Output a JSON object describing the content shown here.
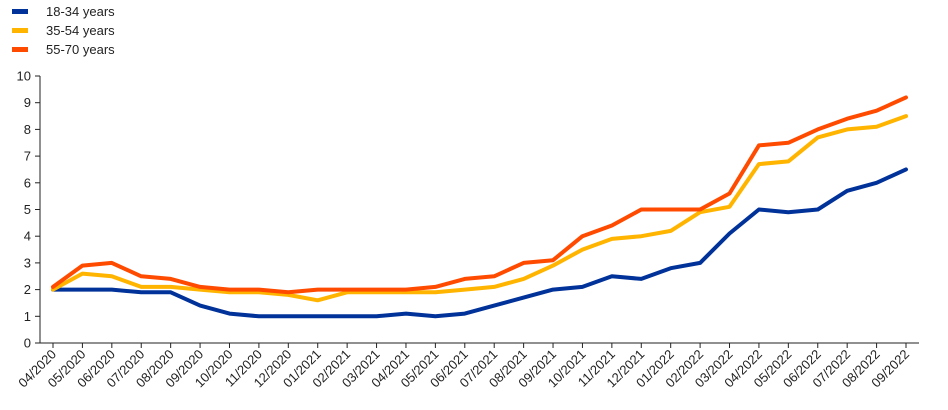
{
  "chart_data": {
    "type": "line",
    "title": "",
    "xlabel": "",
    "ylabel": "",
    "ylim": [
      0,
      10
    ],
    "yticks": [
      0,
      1,
      2,
      3,
      4,
      5,
      6,
      7,
      8,
      9,
      10
    ],
    "grid": false,
    "legend_position": "top-left",
    "categories": [
      "04/2020",
      "05/2020",
      "06/2020",
      "07/2020",
      "08/2020",
      "09/2020",
      "10/2020",
      "11/2020",
      "12/2020",
      "01/2021",
      "02/2021",
      "03/2021",
      "04/2021",
      "05/2021",
      "06/2021",
      "07/2021",
      "08/2021",
      "09/2021",
      "10/2021",
      "11/2021",
      "12/2021",
      "01/2022",
      "02/2022",
      "03/2022",
      "04/2022",
      "05/2022",
      "06/2022",
      "07/2022",
      "08/2022",
      "09/2022"
    ],
    "series": [
      {
        "name": "18-34 years",
        "color": "#003299",
        "values": [
          2.0,
          2.0,
          2.0,
          1.9,
          1.9,
          1.4,
          1.1,
          1.0,
          1.0,
          1.0,
          1.0,
          1.0,
          1.1,
          1.0,
          1.1,
          1.4,
          1.7,
          2.0,
          2.1,
          2.5,
          2.4,
          2.8,
          3.0,
          4.1,
          5.0,
          4.9,
          5.0,
          5.7,
          6.0,
          6.5
        ]
      },
      {
        "name": "35-54 years",
        "color": "#FFB400",
        "values": [
          2.0,
          2.6,
          2.5,
          2.1,
          2.1,
          2.0,
          1.9,
          1.9,
          1.8,
          1.6,
          1.9,
          1.9,
          1.9,
          1.9,
          2.0,
          2.1,
          2.4,
          2.9,
          3.5,
          3.9,
          4.0,
          4.2,
          4.9,
          5.1,
          6.7,
          6.8,
          7.7,
          8.0,
          8.1,
          8.5
        ]
      },
      {
        "name": "55-70 years",
        "color": "#FF4B00",
        "values": [
          2.1,
          2.9,
          3.0,
          2.5,
          2.4,
          2.1,
          2.0,
          2.0,
          1.9,
          2.0,
          2.0,
          2.0,
          2.0,
          2.1,
          2.4,
          2.5,
          3.0,
          3.1,
          4.0,
          4.4,
          5.0,
          5.0,
          5.0,
          5.6,
          7.4,
          7.5,
          8.0,
          8.4,
          8.7,
          9.2
        ]
      }
    ]
  }
}
